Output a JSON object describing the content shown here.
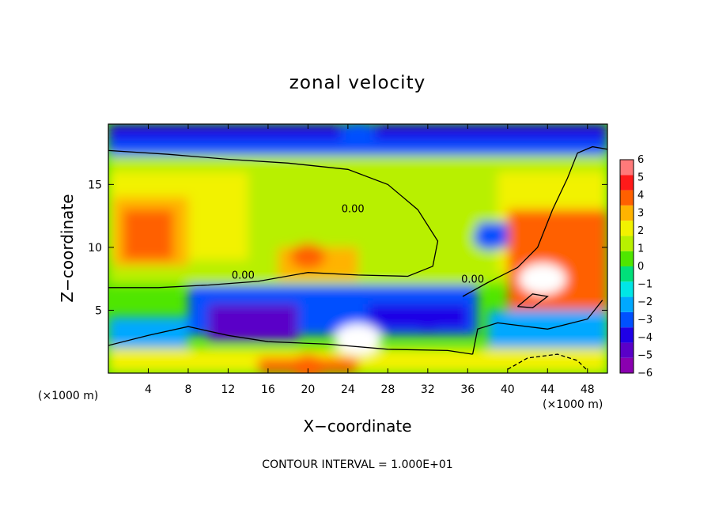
{
  "chart_data": {
    "type": "heatmap",
    "title": "zonal velocity",
    "xlabel": "X−coordinate",
    "ylabel": "Z−coordinate",
    "x_unit_label": "(×1000 m)",
    "z_unit_label": "(×1000 m)",
    "xlim": [
      0,
      50
    ],
    "ylim": [
      0,
      19.8
    ],
    "x_ticks": [
      4,
      8,
      12,
      16,
      20,
      24,
      28,
      32,
      36,
      40,
      44,
      48
    ],
    "y_ticks": [
      5,
      10,
      15
    ],
    "colorbar": {
      "range": [
        -6,
        6
      ],
      "tick_values": [
        6,
        5,
        4,
        3,
        2,
        1,
        0,
        -1,
        -2,
        -3,
        -4,
        -5,
        -6
      ],
      "tick_labels": [
        "6",
        "5",
        "4",
        "3",
        "2",
        "1",
        "0",
        "−1",
        "−2",
        "−3",
        "−4",
        "−5",
        "−6"
      ],
      "colors": [
        "#8a00b0",
        "#5a00c8",
        "#1f00e6",
        "#0050ff",
        "#00a8ff",
        "#00e6e6",
        "#00e07a",
        "#4fe600",
        "#b8f000",
        "#f2f200",
        "#ffb300",
        "#ff6000",
        "#ff1a1a",
        "#ff7a7a"
      ]
    },
    "contour_labels": [
      "0.00",
      "0.00",
      "0.00"
    ],
    "contour_interval_text": "CONTOUR INTERVAL = 1.000E+01",
    "features": [
      {
        "x": 4.2,
        "z": 11,
        "value": 4,
        "sign": "positive max"
      },
      {
        "x": 20,
        "z": 9.3,
        "value": 4
      },
      {
        "x": 43.5,
        "z": 7.5,
        "value": 7,
        "note": "exceeds colorbar (white)"
      },
      {
        "x": 25,
        "z": 2.7,
        "value": 7,
        "note": "exceeds colorbar (white)"
      },
      {
        "x": 38.3,
        "z": 10.8,
        "value": -3
      },
      {
        "x": 14,
        "z": 4,
        "value": -5
      },
      {
        "x": 32,
        "z": 4.3,
        "value": -4
      },
      {
        "x": 25,
        "z": 19,
        "value": -3
      },
      {
        "x": 20,
        "z": 0.5,
        "value": 4
      }
    ]
  }
}
